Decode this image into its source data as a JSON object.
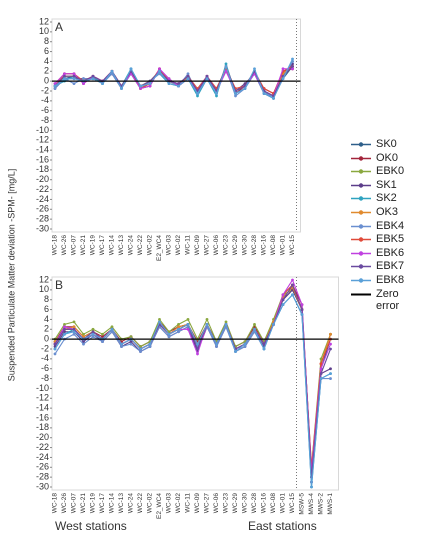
{
  "ylabel": "Suspended Particulate Matter deviation -SPM- [mg/L]",
  "zero_line_label": "Zero error",
  "x_group_labels": [
    "West stations",
    "East stations"
  ],
  "legend": "right",
  "chart_data": [
    {
      "type": "line",
      "label": "A",
      "ylim": [
        -30,
        12
      ],
      "yticks": [
        12,
        10,
        8,
        6,
        4,
        2,
        0,
        -2,
        -4,
        -6,
        -8,
        -10,
        -12,
        -14,
        -16,
        -18,
        -20,
        -22,
        -24,
        -26,
        -28,
        -30
      ],
      "zero_line": true,
      "zero_line_color": "#000000",
      "categories": [
        "WC-18",
        "WC-26",
        "WC-07",
        "WC-21",
        "WC-19",
        "WC-17",
        "WC-14",
        "WC-13",
        "WC-24",
        "WC-22",
        "WC-02",
        "E2_WC4",
        "WC-03",
        "WC-02",
        "WC-11",
        "WC-09",
        "WC-27",
        "WC-06",
        "WC-23",
        "WC-29",
        "WC-30",
        "WC-28",
        "WC-16",
        "WC-08",
        "WC-01",
        "WC-15"
      ],
      "series": [
        {
          "name": "SK0",
          "color": "#2e5f8a",
          "values": [
            -1,
            0.5,
            1,
            0,
            0.5,
            0,
            1.5,
            -1,
            2,
            -1,
            -0.5,
            2,
            0,
            -0.5,
            1,
            -2,
            1,
            -2,
            2.5,
            -2,
            -1,
            2,
            -2,
            -3,
            0.5,
            3
          ]
        },
        {
          "name": "OK0",
          "color": "#a3243b",
          "values": [
            -0.5,
            1.5,
            1.5,
            -0.5,
            1,
            0,
            1.5,
            -1,
            1.5,
            -1.5,
            -1,
            2.5,
            0,
            -1,
            0.5,
            -2,
            0.5,
            -1.5,
            2.5,
            -2.5,
            -1,
            1.5,
            -1.5,
            -2.5,
            2,
            2.5
          ]
        },
        {
          "name": "EBK0",
          "color": "#8aa83f",
          "values": [
            -1,
            1,
            1,
            0,
            1,
            -0.5,
            2,
            -1,
            2,
            -1,
            0,
            2,
            0.5,
            -1,
            1,
            -2,
            1,
            -2,
            3,
            -2,
            -1,
            2,
            -2,
            -3,
            1,
            3
          ]
        },
        {
          "name": "SK1",
          "color": "#5c3d8a",
          "values": [
            -1.5,
            0.5,
            0.5,
            0.5,
            0.5,
            0,
            1.5,
            -1.5,
            2,
            -1,
            0,
            2,
            0,
            -0.5,
            0.5,
            -2.5,
            1,
            -2,
            2,
            -2,
            -0.5,
            1.5,
            -2.5,
            -3.5,
            1,
            3.5
          ]
        },
        {
          "name": "SK2",
          "color": "#2fa3c0",
          "values": [
            -1,
            0,
            1,
            0,
            1,
            -0.5,
            2,
            -1,
            2.5,
            -1,
            0,
            1.5,
            -0.5,
            -1,
            0.5,
            -3,
            0.5,
            -3,
            3.5,
            -2.5,
            -1.5,
            2,
            -2,
            -3.5,
            1,
            4
          ]
        },
        {
          "name": "OK3",
          "color": "#e08a2e",
          "values": [
            -1,
            1,
            1,
            0,
            1,
            0,
            2,
            -1,
            2,
            -1,
            0,
            2,
            0,
            -1,
            1,
            -2,
            1,
            -2,
            3,
            -2,
            -1,
            2,
            -2,
            -3,
            1.5,
            3
          ]
        },
        {
          "name": "EBK4",
          "color": "#6a8fd0",
          "values": [
            -1.5,
            0.5,
            -0.5,
            0.5,
            0.5,
            -0.5,
            1.5,
            -1.5,
            1.5,
            -1.5,
            0,
            1.5,
            0,
            -1,
            1.5,
            -2.5,
            0.5,
            -2.5,
            2.5,
            -3,
            -1.5,
            1.5,
            -2.5,
            -3,
            0.5,
            4
          ]
        },
        {
          "name": "EBK5",
          "color": "#e04a3a",
          "values": [
            -1,
            1.5,
            1.5,
            0,
            1,
            0,
            2,
            -1,
            2,
            -1.5,
            -0.5,
            2.5,
            0,
            -0.5,
            1,
            -1.5,
            1,
            -1.5,
            2.5,
            -1.5,
            -1,
            2,
            -1.5,
            -2.5,
            2,
            3
          ]
        },
        {
          "name": "EBK6",
          "color": "#c040e0",
          "values": [
            -0.5,
            1.5,
            1.5,
            -0.5,
            1,
            0,
            2,
            -1,
            1.5,
            -1.5,
            -1,
            2.5,
            0.5,
            -1,
            0.5,
            -2,
            1,
            -2,
            2,
            -2,
            -1,
            1.5,
            -2,
            -3,
            2.5,
            2.5
          ]
        },
        {
          "name": "EBK7",
          "color": "#6a4aa0",
          "values": [
            -1,
            1,
            1,
            0,
            1,
            0,
            2,
            -1,
            2,
            -1,
            0,
            2,
            0,
            -0.5,
            1,
            -2,
            1,
            -2,
            3,
            -2,
            -1,
            2,
            -2,
            -3,
            1,
            3
          ]
        },
        {
          "name": "EBK8",
          "color": "#5aa0d8",
          "values": [
            -1,
            0.5,
            0.5,
            0,
            0.5,
            -0.5,
            2,
            -1.5,
            2.5,
            -1,
            -0.5,
            2,
            -0.5,
            -1,
            0.5,
            -2.5,
            0.5,
            -2.5,
            3,
            -2.5,
            -1.5,
            2.5,
            -2.5,
            -3.5,
            0.5,
            4.5
          ]
        }
      ]
    },
    {
      "type": "line",
      "label": "B",
      "ylim": [
        -30,
        12
      ],
      "yticks": [
        12,
        10,
        8,
        6,
        4,
        2,
        0,
        -2,
        -4,
        -6,
        -8,
        -10,
        -12,
        -14,
        -16,
        -18,
        -20,
        -22,
        -24,
        -26,
        -28,
        -30
      ],
      "zero_line": true,
      "zero_line_color": "#000000",
      "categories": [
        "WC-18",
        "WC-26",
        "WC-07",
        "WC-21",
        "WC-19",
        "WC-17",
        "WC-14",
        "WC-13",
        "WC-24",
        "WC-22",
        "WC-02",
        "E2_WC4",
        "WC-03",
        "WC-02",
        "WC-11",
        "WC-09",
        "WC-27",
        "WC-06",
        "WC-23",
        "WC-29",
        "WC-30",
        "WC-28",
        "WC-16",
        "WC-08",
        "WC-01",
        "WC-15",
        "MSW-5",
        "MWS-4",
        "MWS-2",
        "MWS-1"
      ],
      "series": [
        {
          "color": "#2e5f8a",
          "values": [
            -1,
            2,
            2,
            0,
            1,
            0,
            2,
            -1,
            0,
            -2,
            -1,
            3,
            1,
            2,
            3,
            -1,
            3,
            -1,
            3,
            -2,
            -1,
            2,
            -1,
            3,
            8,
            10,
            6,
            -28,
            -6,
            0
          ]
        },
        {
          "color": "#a3243b",
          "values": [
            -0.5,
            2.5,
            2.5,
            0.5,
            1.5,
            0.5,
            2,
            -0.5,
            0.5,
            -1.5,
            -0.5,
            3.5,
            1.5,
            2.5,
            3,
            -0.5,
            3,
            -0.5,
            3,
            -1.5,
            -0.5,
            2.5,
            -0.5,
            3.5,
            9,
            11,
            7,
            -27,
            -5,
            1
          ]
        },
        {
          "color": "#8aa83f",
          "values": [
            0,
            3,
            3.5,
            1,
            2,
            1,
            2.5,
            0,
            0.5,
            -1.5,
            -0.5,
            4,
            1.5,
            3,
            4,
            0,
            4,
            -0.5,
            3.5,
            -1.5,
            -0.5,
            3,
            -0.5,
            4,
            9,
            10,
            6,
            -26,
            -4,
            1
          ]
        },
        {
          "color": "#5c3d8a",
          "values": [
            -1.5,
            1.5,
            1.5,
            -0.5,
            1,
            -0.5,
            1.5,
            -1.5,
            -0.5,
            -2.5,
            -1.5,
            2.5,
            0.5,
            1.5,
            2.5,
            -2.5,
            2.5,
            -1.5,
            2.5,
            -2.5,
            -1.5,
            1.5,
            -1.5,
            3,
            8,
            10,
            6,
            -29,
            -7,
            -6
          ]
        },
        {
          "color": "#2fa3c0",
          "values": [
            -2,
            1,
            2,
            0,
            1,
            0,
            2,
            -1,
            0,
            -2,
            -1,
            3,
            1,
            2,
            3,
            -1,
            3,
            -1,
            3,
            -2,
            -1,
            2,
            -2,
            3,
            7,
            9,
            5,
            -30,
            -8,
            -7
          ]
        },
        {
          "color": "#e08a2e",
          "values": [
            -0.5,
            2,
            2.5,
            0.5,
            1.5,
            0,
            2,
            -1,
            0,
            -2,
            -1,
            3,
            1,
            2.5,
            3,
            -1,
            3,
            -1,
            3,
            -2,
            -1,
            2,
            -1,
            3.5,
            8.5,
            10.5,
            6,
            -27,
            -5,
            1
          ]
        },
        {
          "color": "#6a8fd0",
          "values": [
            -3,
            0,
            1,
            -1,
            0.5,
            -0.5,
            1.5,
            -1.5,
            -1,
            -2.5,
            -1.5,
            2.5,
            0.5,
            1.5,
            2.5,
            -1.5,
            2.5,
            -1.5,
            2.5,
            -2.5,
            -1.5,
            1.5,
            -2,
            3,
            7,
            9,
            5,
            -29,
            -8,
            -8
          ]
        },
        {
          "color": "#e04a3a",
          "values": [
            -1,
            2,
            2,
            0,
            1,
            0,
            2,
            -1,
            0,
            -2,
            -1,
            3,
            1,
            2,
            3,
            -1,
            3,
            -1,
            3,
            -2,
            -1,
            2,
            -1,
            3,
            9,
            11,
            6,
            -26,
            -5,
            0
          ]
        },
        {
          "color": "#c040e0",
          "values": [
            -1,
            2.5,
            2,
            0,
            1,
            0,
            2,
            -1,
            0,
            -2,
            -1,
            3,
            1,
            2,
            2,
            -3,
            3,
            -1,
            3,
            -2,
            -1,
            2,
            -1,
            3,
            9,
            12,
            7,
            -27,
            -6,
            -1
          ]
        },
        {
          "color": "#6a4aa0",
          "values": [
            -1,
            2,
            2,
            0,
            1.5,
            0,
            2,
            -1,
            0,
            -2,
            -1,
            3,
            1,
            2,
            3,
            -2,
            3,
            -1,
            3,
            -2,
            -1,
            2,
            -1,
            3,
            8,
            11,
            6,
            -28,
            -7,
            -2
          ]
        },
        {
          "color": "#5aa0d8",
          "values": [
            -2,
            1,
            1.5,
            0,
            1,
            0,
            2,
            -1,
            0,
            -2,
            -1,
            3.5,
            1,
            2,
            3,
            -1,
            3,
            -1,
            3,
            -2.5,
            -1,
            2,
            -2,
            3,
            7,
            9,
            5,
            -30,
            -8,
            -7
          ]
        }
      ]
    }
  ]
}
